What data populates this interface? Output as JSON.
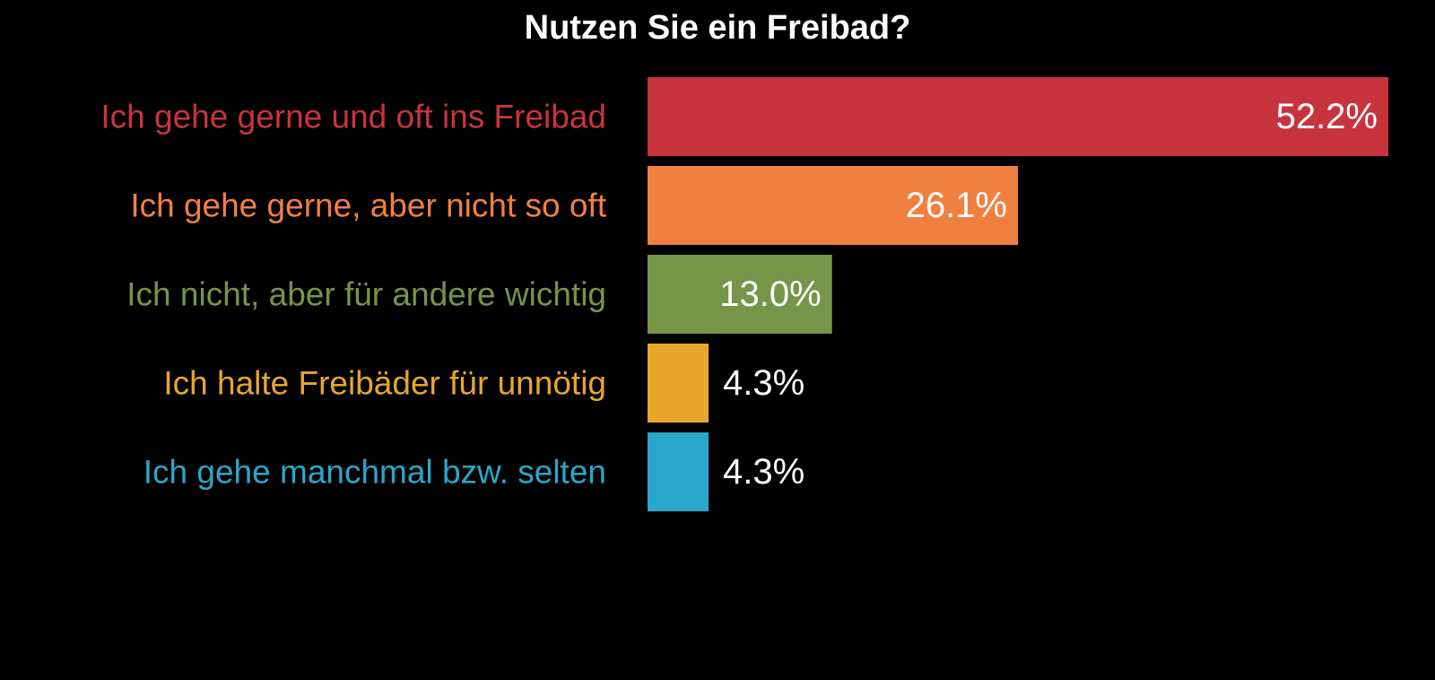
{
  "chart_data": {
    "type": "bar",
    "orientation": "horizontal",
    "title": "Nutzen Sie ein Freibad?",
    "xlabel": "",
    "ylabel": "",
    "unit": "%",
    "xlim": [
      0,
      52.2
    ],
    "grid": false,
    "legend": "none",
    "categories": [
      "Ich gehe gerne und oft ins Freibad",
      "Ich gehe gerne, aber nicht so oft",
      "Ich nicht, aber für andere wichtig",
      "Ich halte Freibäder für unnötig",
      "Ich gehe manchmal bzw. selten"
    ],
    "values": [
      52.2,
      26.1,
      13.0,
      4.3,
      4.3
    ],
    "value_labels": [
      "52.2%",
      "26.1%",
      "13.0%",
      "4.3%",
      "4.3%"
    ],
    "colors": [
      "#c8343e",
      "#f08040",
      "#759549",
      "#e6a72c",
      "#2aa6cb"
    ],
    "background": "#000000",
    "text_color": "#ffffff"
  }
}
